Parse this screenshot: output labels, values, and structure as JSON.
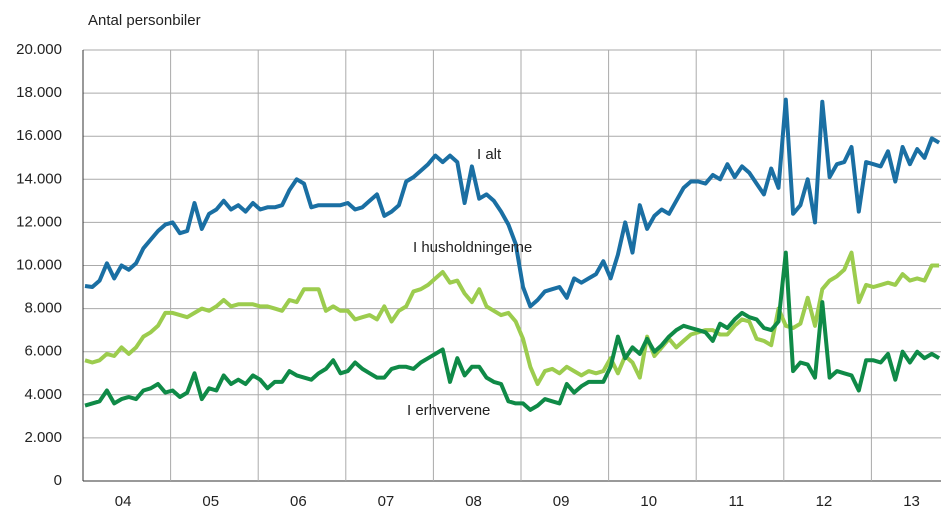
{
  "chart_data": {
    "type": "line",
    "y_axis_title": "Antal personbiler",
    "ylim": [
      0,
      20000
    ],
    "yticks": [
      0,
      {
        "value": 2000,
        "label": "2.000"
      },
      {
        "value": 4000,
        "label": "4.000"
      },
      {
        "value": 6000,
        "label": "6.000"
      },
      {
        "value": 8000,
        "label": "8.000"
      },
      {
        "value": 10000,
        "label": "10.000"
      },
      {
        "value": 12000,
        "label": "12.000"
      },
      {
        "value": 14000,
        "label": "14.000"
      },
      {
        "value": 16000,
        "label": "16.000"
      },
      {
        "value": 18000,
        "label": "18.000"
      },
      {
        "value": 20000,
        "label": "20.000"
      }
    ],
    "grid": true,
    "categories": [
      null,
      null,
      null,
      null,
      null,
      null,
      "04",
      null,
      null,
      null,
      null,
      null,
      null,
      null,
      null,
      null,
      null,
      null,
      "05",
      null,
      null,
      null,
      null,
      null,
      null,
      null,
      null,
      null,
      null,
      null,
      "06",
      null,
      null,
      null,
      null,
      null,
      null,
      null,
      null,
      null,
      null,
      null,
      "07",
      null,
      null,
      null,
      null,
      null,
      null,
      null,
      null,
      null,
      null,
      null,
      "08",
      null,
      null,
      null,
      null,
      null,
      null,
      null,
      null,
      null,
      null,
      null,
      "09",
      null,
      null,
      null,
      null,
      null,
      null,
      null,
      null,
      null,
      null,
      null,
      "10",
      null,
      null,
      null,
      null,
      null,
      null,
      null,
      null,
      null,
      null,
      null,
      "11",
      null,
      null,
      null,
      null,
      null,
      null,
      null,
      null,
      null,
      null,
      null,
      "12",
      null,
      null,
      null,
      null,
      null,
      null,
      null,
      null,
      null,
      null,
      null,
      "13",
      null,
      null,
      null
    ],
    "series": [
      {
        "name": "I alt",
        "color": "#1a6fa3",
        "values": [
          9050,
          9000,
          9300,
          10100,
          9400,
          10000,
          9800,
          10100,
          10800,
          11200,
          11600,
          11900,
          12000,
          11500,
          11600,
          12900,
          11700,
          12400,
          12600,
          13000,
          12600,
          12800,
          12500,
          12900,
          12600,
          12700,
          12700,
          12800,
          13500,
          14000,
          13800,
          12700,
          12800,
          12800,
          12800,
          12800,
          12900,
          12600,
          12700,
          13000,
          13300,
          12300,
          12500,
          12800,
          13900,
          14100,
          14400,
          14700,
          15100,
          14800,
          15100,
          14800,
          12900,
          14600,
          13100,
          13300,
          13000,
          12500,
          11900,
          11000,
          9000,
          8100,
          8400,
          8800,
          8900,
          9000,
          8500,
          9400,
          9200,
          9400,
          9600,
          10200,
          9400,
          10500,
          12000,
          10600,
          12800,
          11700,
          12300,
          12600,
          12400,
          13000,
          13600,
          13900,
          13900,
          13800,
          14200,
          14000,
          14700,
          14100,
          14600,
          14300,
          13800,
          13300,
          14500,
          13600,
          17700,
          12400,
          12800,
          14000,
          12000,
          17600,
          14100,
          14700,
          14800,
          15500,
          12500,
          14800,
          14700,
          14600,
          15300,
          13900,
          15500,
          14700,
          15400,
          15000,
          15900,
          15700
        ]
      },
      {
        "name": "I husholdningerne",
        "color": "#9ccc4e",
        "values": [
          5600,
          5500,
          5600,
          5900,
          5800,
          6200,
          5900,
          6200,
          6700,
          6900,
          7200,
          7800,
          7800,
          7700,
          7600,
          7800,
          8000,
          7900,
          8100,
          8400,
          8100,
          8200,
          8200,
          8200,
          8100,
          8100,
          8000,
          7900,
          8400,
          8300,
          8900,
          8900,
          8900,
          7900,
          8100,
          7900,
          7900,
          7500,
          7600,
          7700,
          7500,
          8100,
          7400,
          7900,
          8100,
          8800,
          8900,
          9100,
          9400,
          9700,
          9200,
          9300,
          8700,
          8300,
          8900,
          8100,
          7900,
          7700,
          7800,
          7400,
          6600,
          5300,
          4500,
          5100,
          5200,
          5000,
          5300,
          5100,
          4900,
          5100,
          5000,
          5100,
          5700,
          5000,
          5800,
          5500,
          4800,
          6700,
          5800,
          6200,
          6600,
          6200,
          6500,
          6800,
          6900,
          7000,
          7000,
          6800,
          6800,
          7200,
          7500,
          7400,
          6600,
          6500,
          6300,
          8000,
          7200,
          7100,
          7300,
          8500,
          7200,
          8900,
          9300,
          9500,
          9800,
          10600,
          8300,
          9100,
          9000,
          9100,
          9200,
          9100,
          9600,
          9300,
          9400,
          9300,
          10000,
          10000
        ]
      },
      {
        "name": "I erhvervene",
        "color": "#0f8a47",
        "values": [
          3500,
          3600,
          3700,
          4200,
          3600,
          3800,
          3900,
          3800,
          4200,
          4300,
          4500,
          4100,
          4200,
          3900,
          4100,
          5000,
          3800,
          4300,
          4200,
          4900,
          4500,
          4700,
          4500,
          4900,
          4700,
          4300,
          4600,
          4600,
          5100,
          4900,
          4800,
          4700,
          5000,
          5200,
          5600,
          5000,
          5100,
          5500,
          5200,
          5000,
          4800,
          4800,
          5200,
          5300,
          5300,
          5200,
          5500,
          5700,
          5900,
          6100,
          4600,
          5700,
          4900,
          5300,
          5300,
          4800,
          4600,
          4500,
          3700,
          3600,
          3600,
          3300,
          3500,
          3800,
          3700,
          3600,
          4500,
          4100,
          4400,
          4600,
          4600,
          4600,
          5300,
          6700,
          5700,
          6200,
          5900,
          6600,
          6000,
          6300,
          6700,
          7000,
          7200,
          7100,
          7000,
          6900,
          6500,
          7300,
          7100,
          7500,
          7800,
          7600,
          7500,
          7100,
          7000,
          7400,
          10600,
          5100,
          5500,
          5400,
          4800,
          8300,
          4800,
          5100,
          5000,
          4900,
          4200,
          5600,
          5600,
          5500,
          5900,
          4700,
          6000,
          5500,
          6000,
          5700,
          5900,
          5700
        ]
      }
    ]
  }
}
